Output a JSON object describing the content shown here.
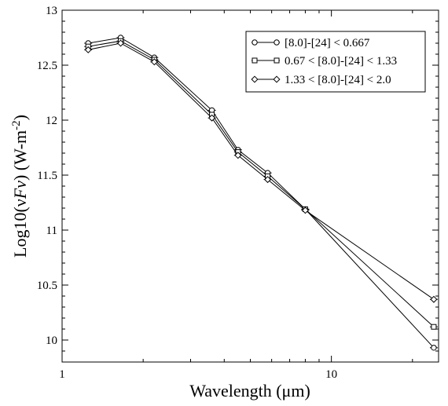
{
  "chart_data": {
    "type": "line",
    "title": "",
    "xlabel": "Wavelength (μm)",
    "ylabel_parts": {
      "main": "Log10(ν",
      "italic": "Fν",
      "close": ") (W-m",
      "sup": "-2",
      "end": ")"
    },
    "x_scale": "log",
    "xlim": [
      1,
      25
    ],
    "ylim": [
      9.8,
      13
    ],
    "x_tick_labels": [
      "1",
      "10"
    ],
    "y_ticks": [
      10,
      10.5,
      11,
      11.5,
      12,
      12.5,
      13
    ],
    "y_tick_labels": [
      "10",
      "10.5",
      "11",
      "11.5",
      "12",
      "12.5",
      "13"
    ],
    "grid": false,
    "legend_position": "top-right",
    "x": [
      1.25,
      1.65,
      2.2,
      3.6,
      4.5,
      5.8,
      8.0,
      24.0
    ],
    "series": [
      {
        "name": "[8.0]-[24] < 0.667",
        "marker": "circle",
        "values": [
          12.7,
          12.75,
          12.57,
          12.09,
          11.73,
          11.52,
          11.19,
          9.93
        ]
      },
      {
        "name": "0.67 < [8.0]-[24] < 1.33",
        "marker": "square",
        "values": [
          12.67,
          12.72,
          12.55,
          12.05,
          11.71,
          11.49,
          11.19,
          10.12
        ]
      },
      {
        "name": "1.33 < [8.0]-[24]  < 2.0",
        "marker": "diamond",
        "values": [
          12.64,
          12.7,
          12.53,
          12.02,
          11.68,
          11.46,
          11.18,
          10.37
        ]
      }
    ]
  }
}
